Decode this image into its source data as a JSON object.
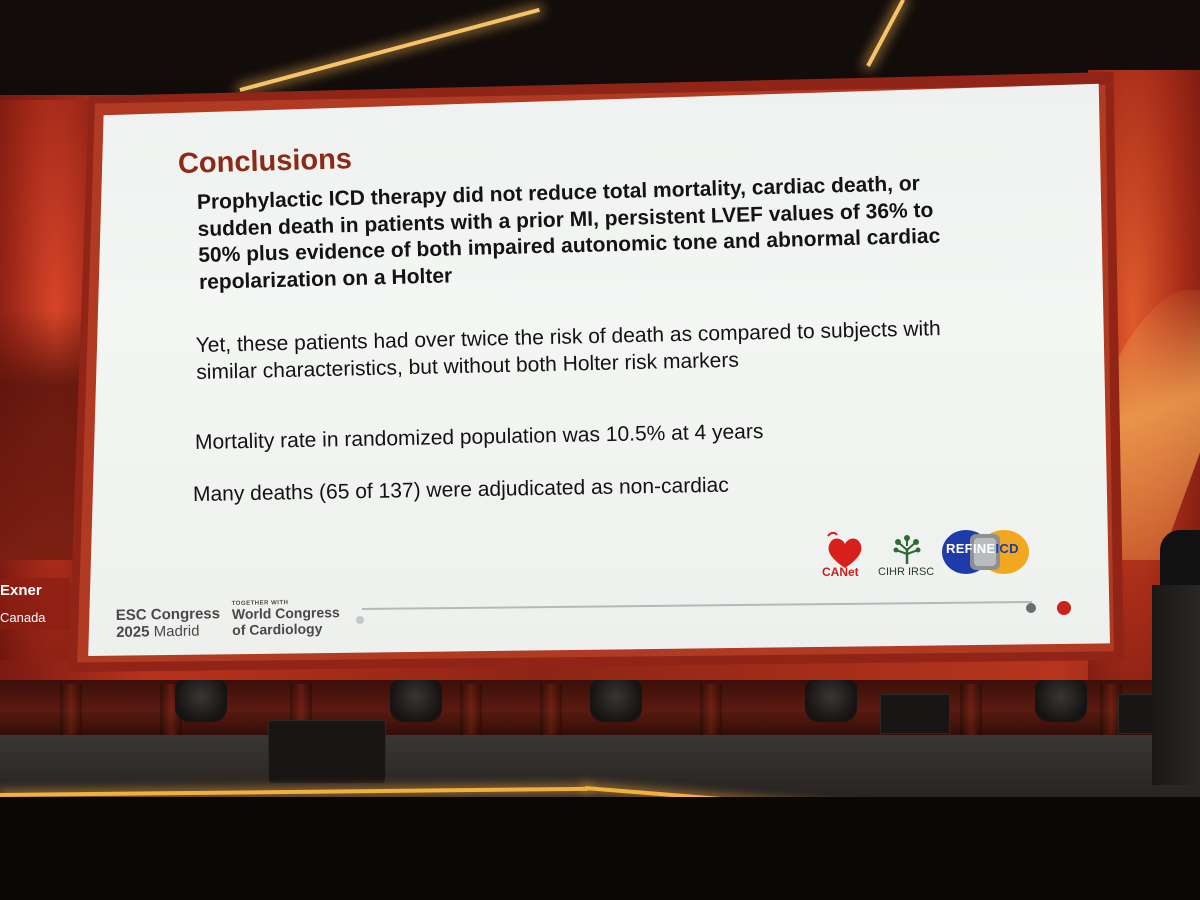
{
  "slide": {
    "title": "Conclusions",
    "paragraph_main": "Prophylactic ICD therapy did not reduce total mortality, cardiac death, or sudden death in patients with a prior MI, persistent LVEF values of 36% to 50% plus evidence of both impaired autonomic tone and abnormal cardiac repolarization on a Holter",
    "paragraph_2": "Yet, these patients had over twice the risk of death as compared to subjects with similar characteristics, but without both Holter risk markers",
    "paragraph_3": "Mortality rate in randomized population was 10.5% at 4 years",
    "paragraph_4": "Many deaths (65 of 137) were adjudicated as non-cardiac",
    "logos": {
      "canet": "CANet",
      "cihr": "CIHR IRSC",
      "refine_a": "REFINE",
      "refine_b": "ICD"
    },
    "footer": {
      "esc_line1": "ESC Congress",
      "esc_year": "2025",
      "esc_city": "Madrid",
      "together_with": "TOGETHER WITH",
      "wcc": "World Congress of Cardiology"
    }
  },
  "speaker": {
    "name": "Exner",
    "country": "Canada"
  },
  "colors": {
    "title": "#8b2a16",
    "accent_red": "#c8241c",
    "stage_light": "#f2b13e"
  }
}
